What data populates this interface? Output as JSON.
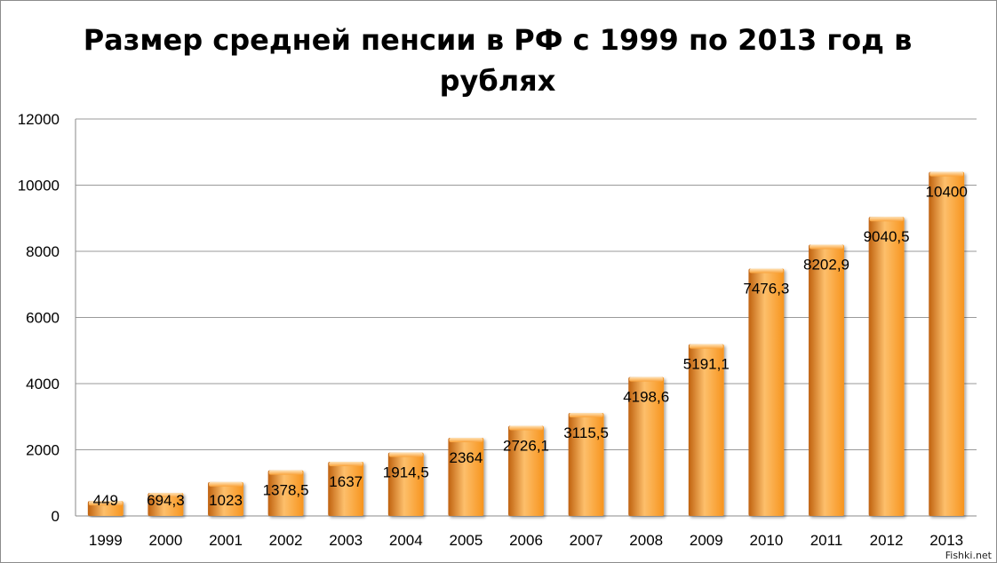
{
  "chart_data": {
    "type": "bar",
    "title": "Размер средней пенсии в РФ с 1999 по 2013 год в рублях",
    "categories": [
      "1999",
      "2000",
      "2001",
      "2002",
      "2003",
      "2004",
      "2005",
      "2006",
      "2007",
      "2008",
      "2009",
      "2010",
      "2011",
      "2012",
      "2013"
    ],
    "values": [
      449,
      694.3,
      1023,
      1378.5,
      1637,
      1914.5,
      2364,
      2726.1,
      3115.5,
      4198.6,
      5191.1,
      7476.3,
      8202.9,
      9040.5,
      10400
    ],
    "value_labels": [
      "449",
      "694,3",
      "1023",
      "1378,5",
      "1637",
      "1914,5",
      "2364",
      "2726,1",
      "3115,5",
      "4198,6",
      "5191,1",
      "7476,3",
      "8202,9",
      "9040,5",
      "10400"
    ],
    "y_ticks": [
      "0",
      "2000",
      "4000",
      "6000",
      "8000",
      "10000",
      "12000"
    ],
    "ylim": [
      0,
      12000
    ],
    "xlabel": "",
    "ylabel": "",
    "grid": true,
    "legend": "none",
    "bar_color": "#F7941D",
    "bar_highlight_color": "#FDBF6B",
    "bar_shadow_color": "#C0620F"
  },
  "watermark": "Fishki.net"
}
